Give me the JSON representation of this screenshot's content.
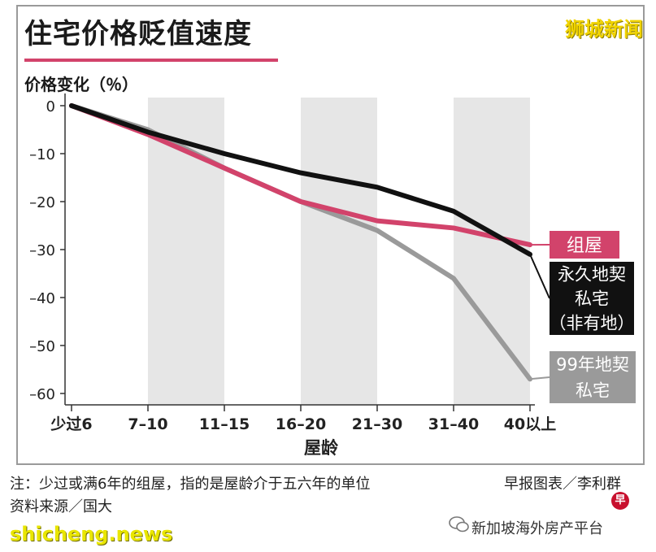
{
  "header": {
    "title": "住宅价格贬值速度",
    "watermark": "狮城新闻"
  },
  "chart_data": {
    "type": "line",
    "ylabel": "价格变化（％）",
    "xlabel": "屋龄",
    "categories": [
      "少过6",
      "7–10",
      "11–15",
      "16–20",
      "21–30",
      "31–40",
      "40以上"
    ],
    "yticks": [
      0,
      -10,
      -20,
      -30,
      -40,
      -50,
      -60
    ],
    "ytick_labels": [
      "0",
      "–10",
      "–20",
      "–30",
      "–40",
      "–50",
      "–60"
    ],
    "ylim": [
      -62,
      2
    ],
    "shaded_bands": [
      "7–10",
      "16–20",
      "31–40"
    ],
    "series": [
      {
        "name": "组屋",
        "color": "#d2436b",
        "values": [
          0,
          -6,
          -13,
          -20,
          -24,
          -25.5,
          -29
        ]
      },
      {
        "name": "永久地契私宅（非有地）",
        "label_lines": [
          "永久地契",
          "私宅",
          "（非有地）"
        ],
        "color": "#111111",
        "values": [
          0,
          -5.5,
          -10,
          -14,
          -17,
          -22,
          -31
        ]
      },
      {
        "name": "99年地契私宅",
        "label_lines": [
          "99年地契",
          "私宅"
        ],
        "color": "#9a9a9a",
        "values": [
          0,
          -5,
          -13,
          -20,
          -26,
          -36,
          -57
        ]
      }
    ],
    "grid": false,
    "legend": "right"
  },
  "footer": {
    "note": "注：少过或满6年的组屋，指的是屋龄介于五六年的单位",
    "source": "资料来源／国大",
    "credit": "早报图表／李利群",
    "badge": "早",
    "platform": "新加坡海外房产平台",
    "site": "shicheng.news"
  }
}
